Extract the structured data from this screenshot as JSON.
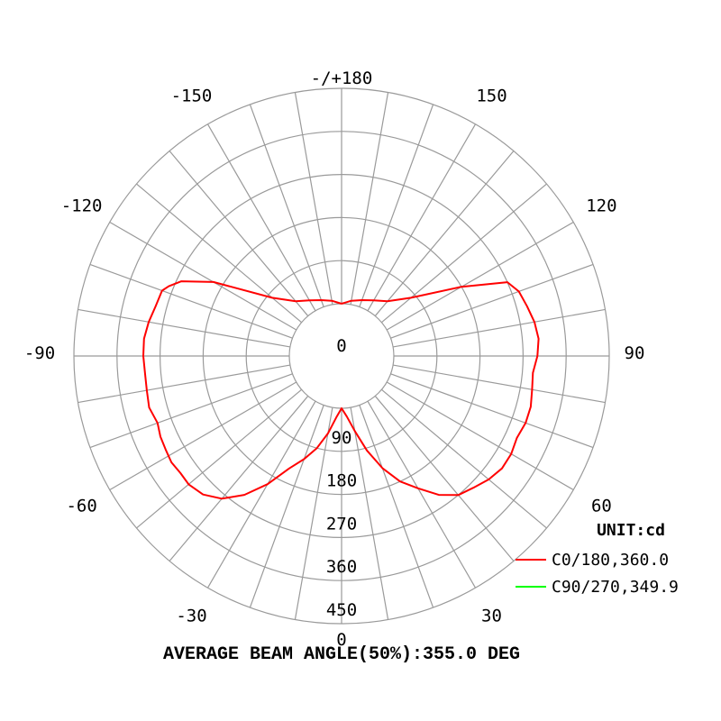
{
  "chart_data": {
    "type": "polar",
    "angle_labels": [
      {
        "deg": 180,
        "text": "-/+180"
      },
      {
        "deg": 150,
        "text": "150"
      },
      {
        "deg": -150,
        "text": "-150"
      },
      {
        "deg": 120,
        "text": "120"
      },
      {
        "deg": -120,
        "text": "-120"
      },
      {
        "deg": 90,
        "text": "90"
      },
      {
        "deg": -90,
        "text": "-90"
      },
      {
        "deg": 60,
        "text": "60"
      },
      {
        "deg": -60,
        "text": "-60"
      },
      {
        "deg": 30,
        "text": "30"
      },
      {
        "deg": -30,
        "text": "-30"
      },
      {
        "deg": 0,
        "text": "0"
      }
    ],
    "radial_ticks": [
      "0",
      "90",
      "180",
      "270",
      "360",
      "450"
    ],
    "radial_max": 450,
    "unit_label": "UNIT:cd",
    "series": [
      {
        "name": "C0/180,360.0",
        "color": "#ff0000",
        "points": [
          [
            -180,
            0
          ],
          [
            -170,
            8
          ],
          [
            -160,
            15
          ],
          [
            -150,
            25
          ],
          [
            -140,
            40
          ],
          [
            -130,
            80
          ],
          [
            -120,
            200
          ],
          [
            -115,
            260
          ],
          [
            -112,
            280
          ],
          [
            -110,
            290
          ],
          [
            -105,
            293
          ],
          [
            -100,
            300
          ],
          [
            -95,
            305
          ],
          [
            -90,
            305
          ],
          [
            -85,
            303
          ],
          [
            -80,
            304
          ],
          [
            -75,
            307
          ],
          [
            -70,
            300
          ],
          [
            -66,
            305
          ],
          [
            -62,
            307
          ],
          [
            -58,
            310
          ],
          [
            -54,
            307
          ],
          [
            -50,
            308
          ],
          [
            -45,
            300
          ],
          [
            -40,
            280
          ],
          [
            -35,
            245
          ],
          [
            -30,
            200
          ],
          [
            -25,
            150
          ],
          [
            -20,
            120
          ],
          [
            -15,
            90
          ],
          [
            -10,
            55
          ],
          [
            -5,
            20
          ],
          [
            0,
            0
          ],
          [
            5,
            18
          ],
          [
            10,
            50
          ],
          [
            15,
            95
          ],
          [
            20,
            140
          ],
          [
            25,
            180
          ],
          [
            30,
            210
          ],
          [
            35,
            245
          ],
          [
            40,
            270
          ],
          [
            45,
            280
          ],
          [
            50,
            292
          ],
          [
            55,
            300
          ],
          [
            60,
            300
          ],
          [
            65,
            295
          ],
          [
            70,
            300
          ],
          [
            75,
            300
          ],
          [
            80,
            295
          ],
          [
            85,
            292
          ],
          [
            90,
            300
          ],
          [
            95,
            304
          ],
          [
            100,
            300
          ],
          [
            105,
            292
          ],
          [
            110,
            285
          ],
          [
            114,
            270
          ],
          [
            120,
            180
          ],
          [
            130,
            80
          ],
          [
            140,
            40
          ],
          [
            150,
            25
          ],
          [
            160,
            15
          ],
          [
            170,
            8
          ],
          [
            180,
            0
          ]
        ]
      },
      {
        "name": "C90/270,349.9",
        "color": "#00ff00",
        "points": []
      }
    ],
    "footer": "AVERAGE BEAM ANGLE(50%):355.0 DEG"
  }
}
